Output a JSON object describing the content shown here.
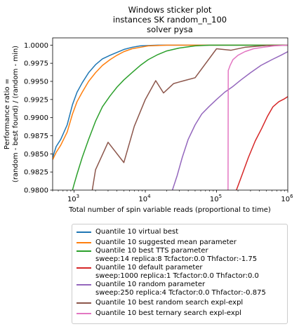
{
  "chart_data": {
    "type": "line",
    "title": [
      "Windows sticker plot",
      "instances SK random_n_100",
      "solver pysa"
    ],
    "xlabel": "Total number of spin variable reads (proportional to time)",
    "ylabel": [
      "Performance ratio =",
      "(random - best found) / (random - min)"
    ],
    "xscale": "log",
    "xlim": [
      500,
      1000000
    ],
    "ylim": [
      0.98,
      1.001
    ],
    "xticks": [
      {
        "value": 1000,
        "base": "10",
        "exp": "3"
      },
      {
        "value": 10000,
        "base": "10",
        "exp": "4"
      },
      {
        "value": 100000,
        "base": "10",
        "exp": "5"
      },
      {
        "value": 1000000,
        "base": "10",
        "exp": "6"
      }
    ],
    "yticks": [
      "0.9800",
      "0.9825",
      "0.9850",
      "0.9875",
      "0.9900",
      "0.9925",
      "0.9950",
      "0.9975",
      "1.0000"
    ],
    "series": [
      {
        "name": "Quantile 10 virtual best",
        "color": "#1f77b4",
        "x": [
          500,
          560,
          650,
          800,
          950,
          1100,
          1300,
          1600,
          2000,
          2500,
          3200,
          4000,
          5000,
          6500,
          8500,
          11000,
          15000,
          20000,
          1000000
        ],
        "y": [
          0.9845,
          0.986,
          0.987,
          0.989,
          0.9918,
          0.9935,
          0.9948,
          0.9962,
          0.9973,
          0.9981,
          0.9986,
          0.999,
          0.9994,
          0.9997,
          0.9999,
          0.99995,
          1.0,
          1.0,
          1.0
        ]
      },
      {
        "name": "Quantile 10 suggested mean parameter",
        "color": "#ff7f0e",
        "x": [
          500,
          560,
          650,
          800,
          950,
          1100,
          1300,
          1600,
          2000,
          2500,
          3200,
          4000,
          5000,
          6500,
          8500,
          11000,
          15000,
          20000,
          30000,
          1000000
        ],
        "y": [
          0.9842,
          0.9852,
          0.9862,
          0.988,
          0.9905,
          0.9922,
          0.9935,
          0.995,
          0.9962,
          0.9972,
          0.998,
          0.9986,
          0.9991,
          0.9995,
          0.9997,
          0.9999,
          0.99995,
          1.0,
          1.0,
          1.0
        ]
      },
      {
        "name": "Quantile 10 best TTS parameter",
        "name2": "sweep:14 replica:8 Tcfactor:0.0 Thfactor:-1.75",
        "color": "#2ca02c",
        "x": [
          950,
          1000,
          1100,
          1300,
          1600,
          2000,
          2500,
          3200,
          4000,
          5000,
          6500,
          8500,
          11000,
          15000,
          20000,
          30000,
          50000,
          80000,
          130000,
          1000000
        ],
        "y": [
          0.98,
          0.9808,
          0.9822,
          0.9845,
          0.987,
          0.9895,
          0.9915,
          0.993,
          0.9942,
          0.9952,
          0.9962,
          0.9972,
          0.998,
          0.9987,
          0.9992,
          0.9996,
          0.9999,
          1.0,
          1.0,
          1.0
        ]
      },
      {
        "name": "Quantile 10 default parameter",
        "name2": "sweep:1000 replica:1 Tcfactor:0.0 Thfactor:0.0",
        "color": "#d62728",
        "x": [
          190000,
          230000,
          280000,
          350000,
          430000,
          520000,
          620000,
          750000,
          900000,
          1000000
        ],
        "y": [
          0.98,
          0.9822,
          0.9845,
          0.9868,
          0.9885,
          0.9902,
          0.9915,
          0.9922,
          0.9926,
          0.9929
        ]
      },
      {
        "name": "Quantile 10 random parameter",
        "name2": "sweep:250 replica:4 Tcfactor:0.0 Thfactor:-0.875",
        "color": "#9467bd",
        "x": [
          24000,
          28000,
          33000,
          40000,
          50000,
          62000,
          78000,
          100000,
          130000,
          170000,
          220000,
          300000,
          420000,
          600000,
          800000,
          1000000
        ],
        "y": [
          0.98,
          0.982,
          0.9845,
          0.987,
          0.989,
          0.9905,
          0.9915,
          0.9925,
          0.9935,
          0.9943,
          0.9952,
          0.9962,
          0.9972,
          0.998,
          0.9986,
          0.9991
        ]
      },
      {
        "name": "Quantile 10  best random search expl-expl",
        "color": "#8c564b",
        "x": [
          1800,
          2000,
          3000,
          5000,
          7000,
          10000,
          14000,
          18000,
          25000,
          35000,
          50000,
          100000,
          160000,
          250000,
          500000,
          1000000
        ],
        "y": [
          0.98,
          0.9828,
          0.9866,
          0.9838,
          0.9888,
          0.9925,
          0.9951,
          0.9934,
          0.9947,
          0.9951,
          0.9955,
          0.9995,
          0.9993,
          0.9997,
          0.99995,
          1.0
        ]
      },
      {
        "name": "Quantile 10  best ternary search expl-expl",
        "color": "#e377c2",
        "x": [
          145000,
          146000,
          150000,
          155000,
          170000,
          200000,
          250000,
          330000,
          450000,
          650000,
          1000000
        ],
        "y": [
          0.98,
          0.9965,
          0.9968,
          0.9972,
          0.998,
          0.9986,
          0.9991,
          0.9995,
          0.9997,
          0.9999,
          1.0
        ]
      }
    ],
    "legend_position": "below"
  }
}
